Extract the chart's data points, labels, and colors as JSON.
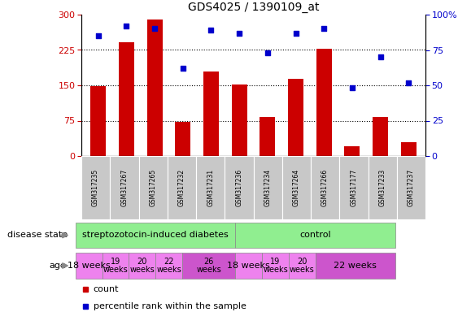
{
  "title": "GDS4025 / 1390109_at",
  "samples": [
    "GSM317235",
    "GSM317267",
    "GSM317265",
    "GSM317232",
    "GSM317231",
    "GSM317236",
    "GSM317234",
    "GSM317264",
    "GSM317266",
    "GSM317177",
    "GSM317233",
    "GSM317237"
  ],
  "counts": [
    148,
    242,
    290,
    73,
    180,
    152,
    82,
    163,
    228,
    20,
    82,
    30
  ],
  "percentiles": [
    85,
    92,
    90,
    62,
    89,
    87,
    73,
    87,
    90,
    48,
    70,
    52
  ],
  "bar_color": "#cc0000",
  "dot_color": "#0000cc",
  "ylim_left": [
    0,
    300
  ],
  "ylim_right": [
    0,
    100
  ],
  "yticks_left": [
    0,
    75,
    150,
    225,
    300
  ],
  "yticks_right": [
    0,
    25,
    50,
    75,
    100
  ],
  "ytick_labels_right": [
    "0",
    "25",
    "50",
    "75",
    "100%"
  ],
  "disease_state_labels": [
    "streptozotocin-induced diabetes",
    "control"
  ],
  "disease_state_color": "#90ee90",
  "age_spans": [
    {
      "label": "18 weeks",
      "cols": [
        0,
        0
      ],
      "color": "#ee82ee",
      "fontsize": 8,
      "multiline": false
    },
    {
      "label": "19\nweeks",
      "cols": [
        1,
        1
      ],
      "color": "#ee82ee",
      "fontsize": 7,
      "multiline": true
    },
    {
      "label": "20\nweeks",
      "cols": [
        2,
        2
      ],
      "color": "#ee82ee",
      "fontsize": 7,
      "multiline": true
    },
    {
      "label": "22\nweeks",
      "cols": [
        3,
        3
      ],
      "color": "#ee82ee",
      "fontsize": 7,
      "multiline": true
    },
    {
      "label": "26\nweeks",
      "cols": [
        4,
        5
      ],
      "color": "#cc55cc",
      "fontsize": 7,
      "multiline": true
    },
    {
      "label": "18 weeks",
      "cols": [
        6,
        6
      ],
      "color": "#ee82ee",
      "fontsize": 8,
      "multiline": false
    },
    {
      "label": "19\nweeks",
      "cols": [
        7,
        7
      ],
      "color": "#ee82ee",
      "fontsize": 7,
      "multiline": true
    },
    {
      "label": "20\nweeks",
      "cols": [
        8,
        8
      ],
      "color": "#ee82ee",
      "fontsize": 7,
      "multiline": true
    },
    {
      "label": "22 weeks",
      "cols": [
        9,
        11
      ],
      "color": "#cc55cc",
      "fontsize": 8,
      "multiline": false
    }
  ],
  "background_color": "#ffffff",
  "tick_label_color_left": "#cc0000",
  "tick_label_color_right": "#0000cc",
  "sample_bg_color": "#c8c8c8",
  "grid_dotted_vals": [
    75,
    150,
    225
  ]
}
